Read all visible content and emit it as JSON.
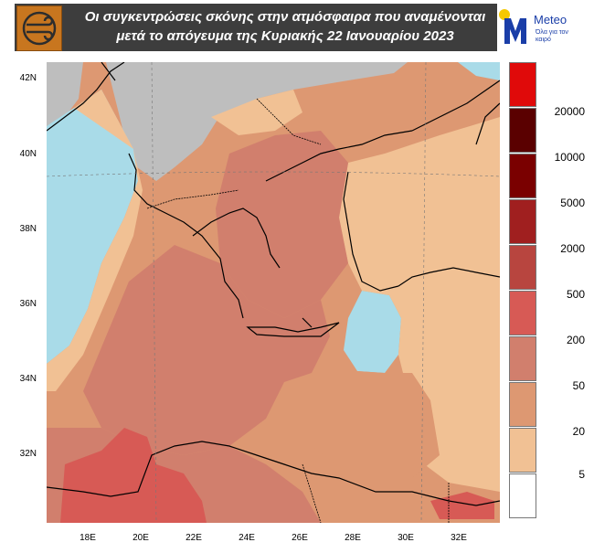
{
  "header": {
    "title_line1": "Οι συγκεντρώσεις σκόνης στην ατμόσφαιρα που αναμένονται",
    "title_line2": "μετά το απόγευμα της Κυριακής 22 Ιανουαρίου 2023",
    "logo_icon": "dust-wind-icon",
    "brand": {
      "name": "Meteo",
      "tagline": "Όλα για τον καιρό",
      "color": "#1a3ea8",
      "sun_color": "#f5c800"
    }
  },
  "map": {
    "lat_labels": [
      "42N",
      "40N",
      "38N",
      "36N",
      "34N",
      "32N"
    ],
    "lon_labels": [
      "18E",
      "20E",
      "22E",
      "24E",
      "26E",
      "28E",
      "30E",
      "32E"
    ],
    "colors": {
      "sea": "#a9dbe8",
      "land_nodata": "#bebebe",
      "c5": "#f1c194",
      "c20": "#dd9872",
      "c50": "#d17f6d",
      "c200": "#d75a55"
    }
  },
  "legend": {
    "labels": [
      "20000",
      "10000",
      "5000",
      "2000",
      "500",
      "200",
      "50",
      "20",
      "5"
    ],
    "colors": [
      "#e00a0a",
      "#5a0000",
      "#7a0000",
      "#a01f1f",
      "#b8453f",
      "#d75a55",
      "#d17f6d",
      "#dd9872",
      "#f1c194",
      "#ffffff"
    ]
  }
}
